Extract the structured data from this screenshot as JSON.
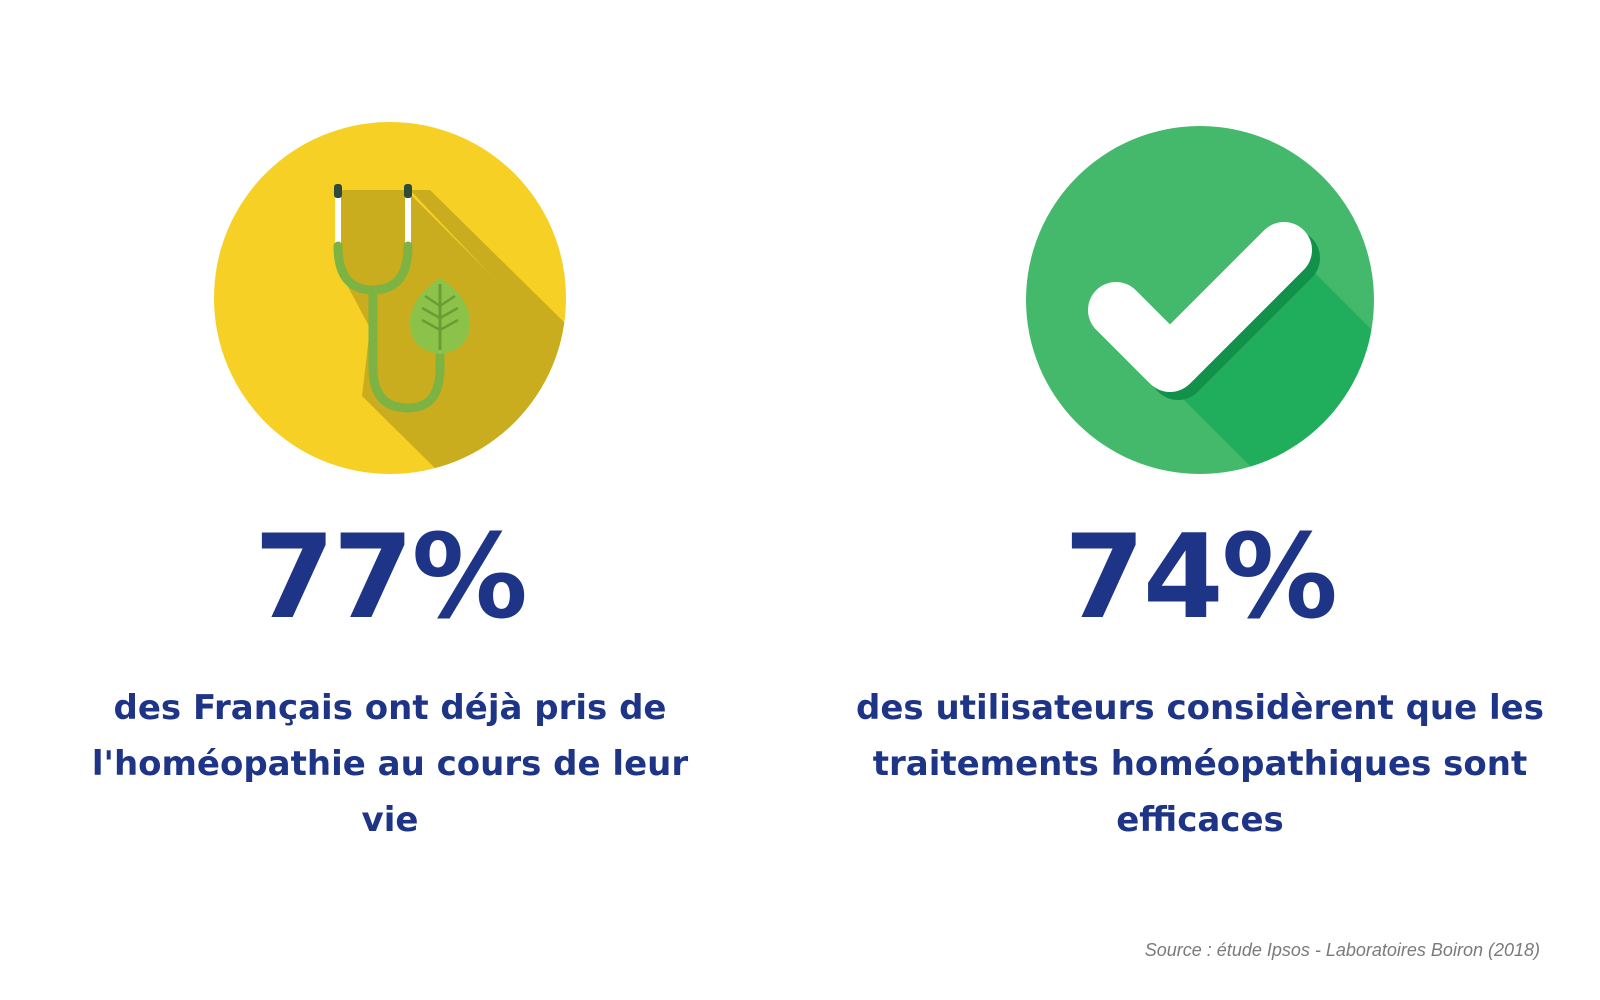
{
  "colors": {
    "text_primary": "#1e3486",
    "yellow": "#f6d025",
    "yellow_shadow": "#c9ad1f",
    "green": "#44b96c",
    "green_shadow": "#20ae5c",
    "green_check_shadow": "#12914a",
    "stethoscope_green": "#7cb342",
    "leaf_green": "#8bc34a",
    "source_gray": "#7a7a7a"
  },
  "stats": [
    {
      "icon": "stethoscope-leaf-icon",
      "percent": "77%",
      "caption": "des Français ont déjà pris de l'homéopathie au cours de leur vie"
    },
    {
      "icon": "checkmark-icon",
      "percent": "74%",
      "caption": "des utilisateurs considèrent que les traitements homéopathiques sont efficaces"
    }
  ],
  "source": "Source : étude Ipsos - Laboratoires Boiron (2018)"
}
